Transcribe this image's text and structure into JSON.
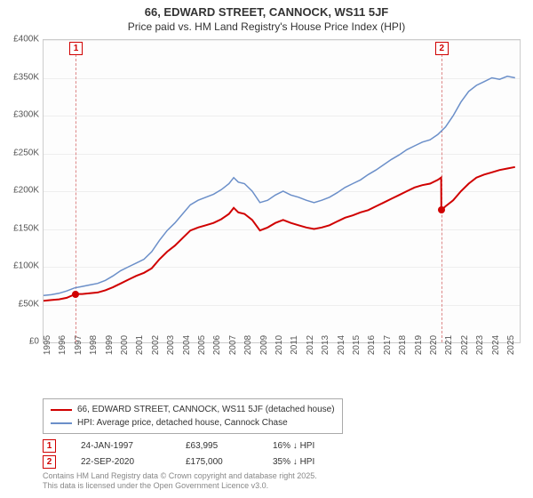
{
  "title_line1": "66, EDWARD STREET, CANNOCK, WS11 5JF",
  "title_line2": "Price paid vs. HM Land Registry's House Price Index (HPI)",
  "chart": {
    "type": "line",
    "background_color": "#fdfdfd",
    "grid_color": "#eeeeee",
    "border_color": "#cccccc",
    "ylim": [
      0,
      400000
    ],
    "ytick_step": 50000,
    "yticks": [
      "£0",
      "£50K",
      "£100K",
      "£150K",
      "£200K",
      "£250K",
      "£300K",
      "£350K",
      "£400K"
    ],
    "xrange": [
      1995,
      2025.8
    ],
    "xticks": [
      1995,
      1996,
      1997,
      1998,
      1999,
      2000,
      2001,
      2002,
      2003,
      2004,
      2005,
      2006,
      2007,
      2008,
      2009,
      2010,
      2011,
      2012,
      2013,
      2014,
      2015,
      2016,
      2017,
      2018,
      2019,
      2020,
      2021,
      2022,
      2023,
      2024,
      2025
    ],
    "series": [
      {
        "name": "price_paid",
        "label": "66, EDWARD STREET, CANNOCK, WS11 5JF (detached house)",
        "color": "#d00000",
        "line_width": 2,
        "data": [
          [
            1995.0,
            55000
          ],
          [
            1995.5,
            56000
          ],
          [
            1996.0,
            57000
          ],
          [
            1996.5,
            59000
          ],
          [
            1997.07,
            63995
          ],
          [
            1997.5,
            64000
          ],
          [
            1998.0,
            65000
          ],
          [
            1998.5,
            66000
          ],
          [
            1999.0,
            69000
          ],
          [
            1999.5,
            73000
          ],
          [
            2000.0,
            78000
          ],
          [
            2000.5,
            83000
          ],
          [
            2001.0,
            88000
          ],
          [
            2001.5,
            92000
          ],
          [
            2002.0,
            98000
          ],
          [
            2002.5,
            110000
          ],
          [
            2003.0,
            120000
          ],
          [
            2003.5,
            128000
          ],
          [
            2004.0,
            138000
          ],
          [
            2004.5,
            148000
          ],
          [
            2005.0,
            152000
          ],
          [
            2005.5,
            155000
          ],
          [
            2006.0,
            158000
          ],
          [
            2006.5,
            163000
          ],
          [
            2007.0,
            170000
          ],
          [
            2007.3,
            178000
          ],
          [
            2007.6,
            172000
          ],
          [
            2008.0,
            170000
          ],
          [
            2008.5,
            162000
          ],
          [
            2009.0,
            148000
          ],
          [
            2009.5,
            152000
          ],
          [
            2010.0,
            158000
          ],
          [
            2010.5,
            162000
          ],
          [
            2011.0,
            158000
          ],
          [
            2011.5,
            155000
          ],
          [
            2012.0,
            152000
          ],
          [
            2012.5,
            150000
          ],
          [
            2013.0,
            152000
          ],
          [
            2013.5,
            155000
          ],
          [
            2014.0,
            160000
          ],
          [
            2014.5,
            165000
          ],
          [
            2015.0,
            168000
          ],
          [
            2015.5,
            172000
          ],
          [
            2016.0,
            175000
          ],
          [
            2016.5,
            180000
          ],
          [
            2017.0,
            185000
          ],
          [
            2017.5,
            190000
          ],
          [
            2018.0,
            195000
          ],
          [
            2018.5,
            200000
          ],
          [
            2019.0,
            205000
          ],
          [
            2019.5,
            208000
          ],
          [
            2020.0,
            210000
          ],
          [
            2020.5,
            215000
          ],
          [
            2020.72,
            218000
          ],
          [
            2020.73,
            175000
          ],
          [
            2021.0,
            180000
          ],
          [
            2021.5,
            188000
          ],
          [
            2022.0,
            200000
          ],
          [
            2022.5,
            210000
          ],
          [
            2023.0,
            218000
          ],
          [
            2023.5,
            222000
          ],
          [
            2024.0,
            225000
          ],
          [
            2024.5,
            228000
          ],
          [
            2025.0,
            230000
          ],
          [
            2025.5,
            232000
          ]
        ]
      },
      {
        "name": "hpi",
        "label": "HPI: Average price, detached house, Cannock Chase",
        "color": "#6b8fc9",
        "line_width": 1.5,
        "data": [
          [
            1995.0,
            62000
          ],
          [
            1995.5,
            63000
          ],
          [
            1996.0,
            65000
          ],
          [
            1996.5,
            68000
          ],
          [
            1997.0,
            72000
          ],
          [
            1997.5,
            74000
          ],
          [
            1998.0,
            76000
          ],
          [
            1998.5,
            78000
          ],
          [
            1999.0,
            82000
          ],
          [
            1999.5,
            88000
          ],
          [
            2000.0,
            95000
          ],
          [
            2000.5,
            100000
          ],
          [
            2001.0,
            105000
          ],
          [
            2001.5,
            110000
          ],
          [
            2002.0,
            120000
          ],
          [
            2002.5,
            135000
          ],
          [
            2003.0,
            148000
          ],
          [
            2003.5,
            158000
          ],
          [
            2004.0,
            170000
          ],
          [
            2004.5,
            182000
          ],
          [
            2005.0,
            188000
          ],
          [
            2005.5,
            192000
          ],
          [
            2006.0,
            196000
          ],
          [
            2006.5,
            202000
          ],
          [
            2007.0,
            210000
          ],
          [
            2007.3,
            218000
          ],
          [
            2007.6,
            212000
          ],
          [
            2008.0,
            210000
          ],
          [
            2008.5,
            200000
          ],
          [
            2009.0,
            185000
          ],
          [
            2009.5,
            188000
          ],
          [
            2010.0,
            195000
          ],
          [
            2010.5,
            200000
          ],
          [
            2011.0,
            195000
          ],
          [
            2011.5,
            192000
          ],
          [
            2012.0,
            188000
          ],
          [
            2012.5,
            185000
          ],
          [
            2013.0,
            188000
          ],
          [
            2013.5,
            192000
          ],
          [
            2014.0,
            198000
          ],
          [
            2014.5,
            205000
          ],
          [
            2015.0,
            210000
          ],
          [
            2015.5,
            215000
          ],
          [
            2016.0,
            222000
          ],
          [
            2016.5,
            228000
          ],
          [
            2017.0,
            235000
          ],
          [
            2017.5,
            242000
          ],
          [
            2018.0,
            248000
          ],
          [
            2018.5,
            255000
          ],
          [
            2019.0,
            260000
          ],
          [
            2019.5,
            265000
          ],
          [
            2020.0,
            268000
          ],
          [
            2020.5,
            275000
          ],
          [
            2021.0,
            285000
          ],
          [
            2021.5,
            300000
          ],
          [
            2022.0,
            318000
          ],
          [
            2022.5,
            332000
          ],
          [
            2023.0,
            340000
          ],
          [
            2023.5,
            345000
          ],
          [
            2024.0,
            350000
          ],
          [
            2024.5,
            348000
          ],
          [
            2025.0,
            352000
          ],
          [
            2025.5,
            350000
          ]
        ]
      }
    ],
    "markers": [
      {
        "id": "1",
        "date": "24-JAN-1997",
        "x": 1997.07,
        "y": 63995,
        "price": "£63,995",
        "hpi": "16% ↓ HPI"
      },
      {
        "id": "2",
        "date": "22-SEP-2020",
        "x": 2020.73,
        "y": 175000,
        "price": "£175,000",
        "hpi": "35% ↓ HPI"
      }
    ]
  },
  "legend": {
    "items": [
      {
        "color": "#d00000",
        "label": "66, EDWARD STREET, CANNOCK, WS11 5JF (detached house)"
      },
      {
        "color": "#6b8fc9",
        "label": "HPI: Average price, detached house, Cannock Chase"
      }
    ]
  },
  "footer_line1": "Contains HM Land Registry data © Crown copyright and database right 2025.",
  "footer_line2": "This data is licensed under the Open Government Licence v3.0."
}
